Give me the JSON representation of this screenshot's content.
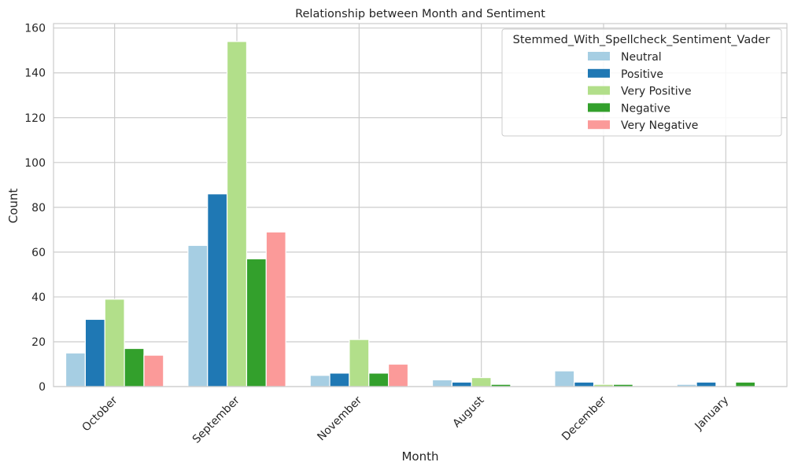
{
  "chart_data": {
    "type": "bar",
    "title": "Relationship between Month and Sentiment",
    "xlabel": "Month",
    "ylabel": "Count",
    "ylim": [
      0,
      162
    ],
    "yticks": [
      0,
      20,
      40,
      60,
      80,
      100,
      120,
      140,
      160
    ],
    "grid": true,
    "legend_position": "top-right",
    "legend_title": "Stemmed_With_Spellcheck_Sentiment_Vader",
    "categories": [
      "October",
      "September",
      "November",
      "August",
      "December",
      "January"
    ],
    "series": [
      {
        "name": "Neutral",
        "color": "#a6cee3",
        "values": [
          15,
          63,
          5,
          3,
          7,
          1
        ]
      },
      {
        "name": "Positive",
        "color": "#1f78b4",
        "values": [
          30,
          86,
          6,
          2,
          2,
          2
        ]
      },
      {
        "name": "Very Positive",
        "color": "#b2df8a",
        "values": [
          39,
          154,
          21,
          4,
          1,
          0
        ]
      },
      {
        "name": "Negative",
        "color": "#33a02c",
        "values": [
          17,
          57,
          6,
          1,
          1,
          2
        ]
      },
      {
        "name": "Very Negative",
        "color": "#fb9a99",
        "values": [
          14,
          69,
          10,
          0,
          0,
          0
        ]
      }
    ]
  }
}
